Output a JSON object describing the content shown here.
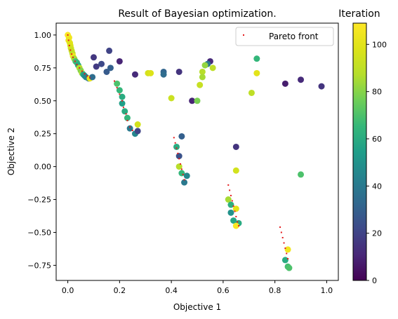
{
  "chart_data": {
    "type": "scatter",
    "title": "Result of Bayesian optimization.",
    "xlabel": "Objective 1",
    "ylabel": "Objective 2",
    "xlim": [
      -0.045,
      1.045
    ],
    "ylim": [
      -0.865,
      1.09
    ],
    "xticks": [
      0.0,
      0.2,
      0.4,
      0.6,
      0.8,
      1.0
    ],
    "xtick_labels": [
      "0.0",
      "0.2",
      "0.4",
      "0.6",
      "0.8",
      "1.0"
    ],
    "yticks": [
      -0.75,
      -0.5,
      -0.25,
      0.0,
      0.25,
      0.5,
      0.75,
      1.0
    ],
    "ytick_labels": [
      "−0.75",
      "−0.50",
      "−0.25",
      "0.00",
      "0.25",
      "0.50",
      "0.75",
      "1.00"
    ],
    "grid": false,
    "legend": {
      "position": "top-right",
      "entries": [
        "Pareto front"
      ]
    },
    "colorbar": {
      "label": "Iteration",
      "min": 0,
      "max": 109,
      "ticks": [
        0,
        20,
        40,
        60,
        80,
        100
      ],
      "tick_labels": [
        "0",
        "20",
        "40",
        "60",
        "80",
        "100"
      ],
      "colormap": "viridis"
    },
    "colors": {
      "pareto": "#e41a1c"
    },
    "series": [
      {
        "name": "Pareto front",
        "marker": "tiny-dot",
        "points": [
          [
            0.0,
            1.0
          ],
          [
            0.003,
            0.96
          ],
          [
            0.006,
            0.92
          ],
          [
            0.01,
            0.885
          ],
          [
            0.015,
            0.855
          ],
          [
            0.02,
            0.83
          ],
          [
            0.028,
            0.8
          ],
          [
            0.035,
            0.775
          ],
          [
            0.045,
            0.75
          ],
          [
            0.055,
            0.725
          ],
          [
            0.065,
            0.705
          ],
          [
            0.075,
            0.688
          ],
          [
            0.085,
            0.675
          ],
          [
            0.18,
            0.65
          ],
          [
            0.19,
            0.6
          ],
          [
            0.2,
            0.55
          ],
          [
            0.21,
            0.5
          ],
          [
            0.215,
            0.45
          ],
          [
            0.225,
            0.4
          ],
          [
            0.23,
            0.35
          ],
          [
            0.24,
            0.3
          ],
          [
            0.25,
            0.275
          ],
          [
            0.41,
            0.22
          ],
          [
            0.415,
            0.18
          ],
          [
            0.42,
            0.14
          ],
          [
            0.425,
            0.1
          ],
          [
            0.43,
            0.06
          ],
          [
            0.435,
            0.02
          ],
          [
            0.44,
            -0.02
          ],
          [
            0.445,
            -0.06
          ],
          [
            0.45,
            -0.1
          ],
          [
            0.62,
            -0.14
          ],
          [
            0.625,
            -0.18
          ],
          [
            0.63,
            -0.22
          ],
          [
            0.635,
            -0.26
          ],
          [
            0.64,
            -0.3
          ],
          [
            0.645,
            -0.34
          ],
          [
            0.65,
            -0.38
          ],
          [
            0.655,
            -0.42
          ],
          [
            0.66,
            -0.45
          ],
          [
            0.82,
            -0.46
          ],
          [
            0.825,
            -0.5
          ],
          [
            0.83,
            -0.54
          ],
          [
            0.835,
            -0.58
          ],
          [
            0.84,
            -0.62
          ],
          [
            0.845,
            -0.66
          ],
          [
            0.85,
            -0.7
          ]
        ]
      },
      {
        "name": "",
        "marker": "circle",
        "color_by": "iteration",
        "points": [
          [
            0.16,
            0.88,
            20
          ],
          [
            0.2,
            0.8,
            10
          ],
          [
            0.1,
            0.83,
            16
          ],
          [
            0.13,
            0.78,
            22
          ],
          [
            0.11,
            0.76,
            17
          ],
          [
            0.165,
            0.75,
            30
          ],
          [
            0.15,
            0.72,
            28
          ],
          [
            0.26,
            0.7,
            12
          ],
          [
            0.37,
            0.72,
            32
          ],
          [
            0.37,
            0.7,
            35
          ],
          [
            0.43,
            0.72,
            15
          ],
          [
            0.55,
            0.8,
            12
          ],
          [
            0.54,
            0.78,
            40
          ],
          [
            0.53,
            0.77,
            82
          ],
          [
            0.56,
            0.75,
            90
          ],
          [
            0.52,
            0.72,
            88
          ],
          [
            0.52,
            0.68,
            85
          ],
          [
            0.51,
            0.62,
            92
          ],
          [
            0.73,
            0.82,
            65
          ],
          [
            0.73,
            0.71,
            100
          ],
          [
            0.71,
            0.56,
            90
          ],
          [
            0.84,
            0.63,
            8
          ],
          [
            0.9,
            0.66,
            12
          ],
          [
            0.98,
            0.61,
            15
          ],
          [
            0.48,
            0.5,
            10
          ],
          [
            0.5,
            0.5,
            78
          ],
          [
            0.4,
            0.52,
            93
          ],
          [
            0.31,
            0.71,
            96
          ],
          [
            0.32,
            0.71,
            98
          ],
          [
            0.0,
            1.0,
            108
          ],
          [
            0.005,
            0.98,
            105
          ],
          [
            0.003,
            0.96,
            103
          ],
          [
            0.008,
            0.94,
            100
          ],
          [
            0.01,
            0.92,
            98
          ],
          [
            0.012,
            0.9,
            95
          ],
          [
            0.015,
            0.88,
            92
          ],
          [
            0.018,
            0.86,
            90
          ],
          [
            0.02,
            0.84,
            104
          ],
          [
            0.025,
            0.82,
            85
          ],
          [
            0.03,
            0.8,
            70
          ],
          [
            0.035,
            0.79,
            65
          ],
          [
            0.04,
            0.77,
            60
          ],
          [
            0.045,
            0.75,
            88
          ],
          [
            0.05,
            0.73,
            80
          ],
          [
            0.055,
            0.71,
            85
          ],
          [
            0.06,
            0.7,
            58
          ],
          [
            0.065,
            0.69,
            50
          ],
          [
            0.07,
            0.68,
            45
          ],
          [
            0.08,
            0.67,
            40
          ],
          [
            0.085,
            0.67,
            102
          ],
          [
            0.095,
            0.68,
            35
          ],
          [
            0.19,
            0.63,
            70
          ],
          [
            0.2,
            0.58,
            65
          ],
          [
            0.21,
            0.53,
            60
          ],
          [
            0.21,
            0.48,
            55
          ],
          [
            0.22,
            0.42,
            60
          ],
          [
            0.23,
            0.37,
            65
          ],
          [
            0.24,
            0.29,
            40
          ],
          [
            0.26,
            0.25,
            45
          ],
          [
            0.27,
            0.27,
            20
          ],
          [
            0.27,
            0.32,
            95
          ],
          [
            0.44,
            0.23,
            30
          ],
          [
            0.42,
            0.15,
            60
          ],
          [
            0.43,
            0.08,
            25
          ],
          [
            0.43,
            0.0,
            88
          ],
          [
            0.44,
            -0.05,
            65
          ],
          [
            0.45,
            -0.12,
            40
          ],
          [
            0.46,
            -0.07,
            45
          ],
          [
            0.65,
            0.15,
            15
          ],
          [
            0.65,
            -0.03,
            95
          ],
          [
            0.62,
            -0.25,
            85
          ],
          [
            0.63,
            -0.29,
            62
          ],
          [
            0.63,
            -0.35,
            50
          ],
          [
            0.64,
            -0.41,
            58
          ],
          [
            0.66,
            -0.43,
            60
          ],
          [
            0.65,
            -0.32,
            100
          ],
          [
            0.65,
            -0.45,
            108
          ],
          [
            0.9,
            -0.06,
            70
          ],
          [
            0.85,
            -0.63,
            105
          ],
          [
            0.84,
            -0.71,
            60
          ],
          [
            0.85,
            -0.76,
            68
          ],
          [
            0.855,
            -0.77,
            70
          ]
        ]
      }
    ]
  }
}
